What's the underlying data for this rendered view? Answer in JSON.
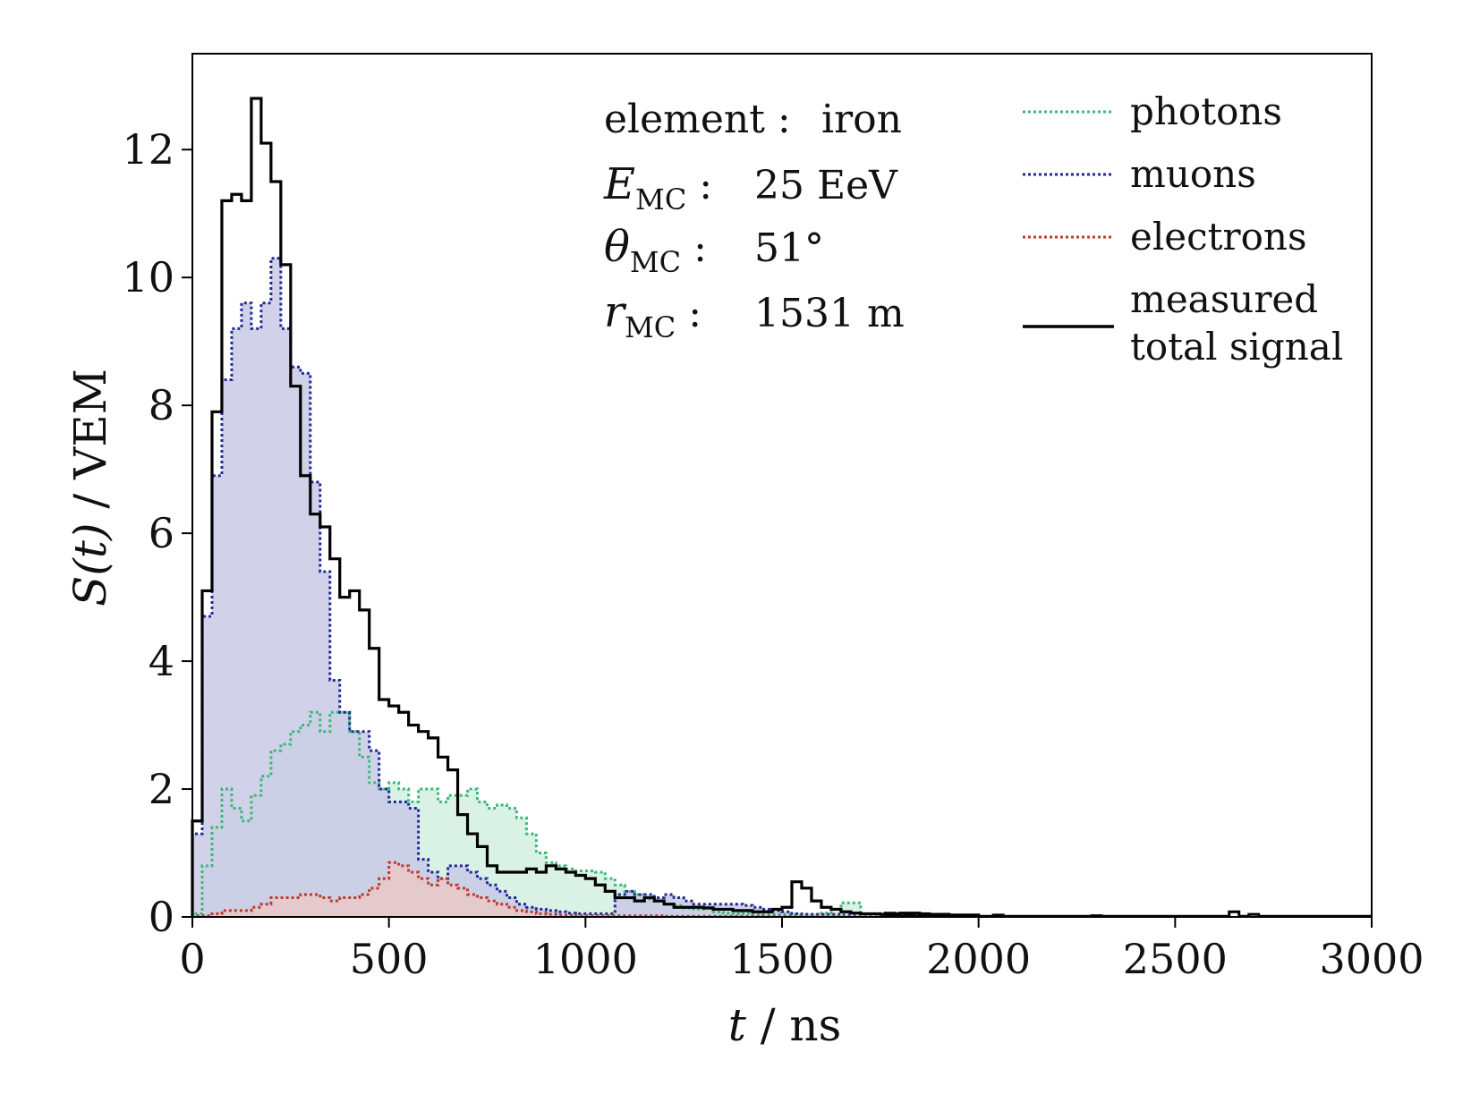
{
  "chart_data": {
    "type": "step-histogram",
    "bin_width": 25,
    "x_start": 0,
    "xlim": [
      0,
      3000
    ],
    "ylim": [
      0,
      13.5
    ],
    "xticks": [
      0,
      500,
      1000,
      1500,
      2000,
      2500,
      3000
    ],
    "yticks": [
      0,
      2,
      4,
      6,
      8,
      10,
      12
    ],
    "xlabel": {
      "var": "t",
      "rest": " / ns"
    },
    "ylabel": {
      "var": "S(t)",
      "rest": " / VEM"
    },
    "info": [
      {
        "sym": "element",
        "sub": "",
        "colon": " :",
        "val": "iron"
      },
      {
        "sym": "E",
        "sub": "MC",
        "colon": " :",
        "val": "25 EeV"
      },
      {
        "sym": "θ",
        "sub": "MC",
        "colon": " :",
        "val": "51°"
      },
      {
        "sym": "r",
        "sub": "MC",
        "colon": " :",
        "val": "1531 m"
      }
    ],
    "series": [
      {
        "name": "photons",
        "color": "#3cb878",
        "fill": "#d3efe0",
        "style": "dotted",
        "values": [
          0.05,
          0.8,
          1.4,
          2.0,
          1.7,
          1.5,
          1.9,
          2.2,
          2.6,
          2.7,
          2.9,
          3.0,
          3.2,
          2.9,
          3.2,
          3.2,
          2.9,
          2.5,
          2.1,
          2.0,
          2.1,
          2.0,
          1.8,
          2.0,
          2.0,
          1.8,
          1.9,
          1.9,
          2.0,
          1.8,
          1.7,
          1.75,
          1.7,
          1.55,
          1.3,
          1.0,
          0.85,
          0.8,
          0.75,
          0.72,
          0.72,
          0.7,
          0.6,
          0.5,
          0.4,
          0.35,
          0.28,
          0.25,
          0.2,
          0.18,
          0.14,
          0.12,
          0.15,
          0.08,
          0.06,
          0.05,
          0.06,
          0.05,
          0.04,
          0.04,
          0.04,
          0.04,
          0.04,
          0.04,
          0.06,
          0.12,
          0.22,
          0.22,
          0.04,
          0.05,
          0.05,
          0.04,
          0.04,
          0.03,
          0.03,
          0.02,
          0.02,
          0.02,
          0.02,
          0.02
        ]
      },
      {
        "name": "muons",
        "color": "#1f2a96",
        "fill": "#c9cae6",
        "style": "dotted",
        "values": [
          1.3,
          4.7,
          6.9,
          8.4,
          9.2,
          9.6,
          9.2,
          9.6,
          10.3,
          9.2,
          8.6,
          8.5,
          6.8,
          5.4,
          3.7,
          3.2,
          2.9,
          2.9,
          2.6,
          2.0,
          1.8,
          1.8,
          1.7,
          0.9,
          0.7,
          0.6,
          0.8,
          0.8,
          0.7,
          0.6,
          0.5,
          0.4,
          0.3,
          0.2,
          0.15,
          0.12,
          0.1,
          0.08,
          0.06,
          0.05,
          0.05,
          0.05,
          0.05,
          0.35,
          0.4,
          0.35,
          0.35,
          0.3,
          0.35,
          0.3,
          0.25,
          0.2,
          0.2,
          0.2,
          0.2,
          0.2,
          0.18,
          0.15,
          0.12,
          0.1,
          0.08,
          0.05,
          0.04,
          0.04,
          0.04,
          0.04,
          0.03,
          0.03,
          0.03,
          0.03,
          0.03,
          0.02,
          0.02,
          0.02,
          0.02,
          0.02,
          0.02,
          0.02,
          0.02,
          0.02
        ]
      },
      {
        "name": "electrons",
        "color": "#c0392b",
        "fill": "#e8c8c8",
        "style": "dotted",
        "values": [
          0.02,
          0.02,
          0.05,
          0.1,
          0.1,
          0.1,
          0.15,
          0.2,
          0.3,
          0.3,
          0.3,
          0.35,
          0.35,
          0.3,
          0.25,
          0.3,
          0.3,
          0.35,
          0.45,
          0.6,
          0.85,
          0.8,
          0.7,
          0.6,
          0.5,
          0.6,
          0.5,
          0.45,
          0.35,
          0.3,
          0.25,
          0.2,
          0.15,
          0.1,
          0.08,
          0.05,
          0.04,
          0.03,
          0.03,
          0.02,
          0.02,
          0.02,
          0.02,
          0.02,
          0.02,
          0.02,
          0.02,
          0.02,
          0.01,
          0.01,
          0.01,
          0.01,
          0.01,
          0.01,
          0.01,
          0.01,
          0.01,
          0.01,
          0.01,
          0.01,
          0.01,
          0.01,
          0.01,
          0.01,
          0.01,
          0.01,
          0.01,
          0.01,
          0.01,
          0.01,
          0.01,
          0.01,
          0.01,
          0.01,
          0.01,
          0.01,
          0.01,
          0.01,
          0.01,
          0.01
        ]
      },
      {
        "name": "measured total signal",
        "color": "#000000",
        "fill": "none",
        "style": "solid",
        "values": [
          1.5,
          5.1,
          7.9,
          11.2,
          11.3,
          11.2,
          12.8,
          12.1,
          11.5,
          10.2,
          8.3,
          6.9,
          6.3,
          6.1,
          5.6,
          5.0,
          5.1,
          4.8,
          4.2,
          3.4,
          3.3,
          3.2,
          3.0,
          2.9,
          2.8,
          2.5,
          2.3,
          1.6,
          1.3,
          1.1,
          0.8,
          0.7,
          0.7,
          0.7,
          0.75,
          0.7,
          0.8,
          0.75,
          0.7,
          0.65,
          0.6,
          0.5,
          0.4,
          0.3,
          0.3,
          0.25,
          0.3,
          0.25,
          0.2,
          0.15,
          0.15,
          0.15,
          0.14,
          0.12,
          0.12,
          0.1,
          0.1,
          0.08,
          0.08,
          0.12,
          0.15,
          0.55,
          0.45,
          0.25,
          0.15,
          0.12,
          0.08,
          0.06,
          0.05,
          0.05,
          0.04,
          0.05,
          0.06,
          0.06,
          0.05,
          0.04,
          0.04,
          0.03,
          0.03,
          0.03
        ]
      }
    ],
    "tail": [
      {
        "x": 1775,
        "y": 0.06
      },
      {
        "x": 1825,
        "y": 0.05
      },
      {
        "x": 2050,
        "y": 0.03
      },
      {
        "x": 2300,
        "y": 0.02
      },
      {
        "x": 2650,
        "y": 0.08
      },
      {
        "x": 2700,
        "y": 0.04
      }
    ],
    "legend": [
      {
        "label": "photons",
        "color": "#3cb878",
        "style": "dotted"
      },
      {
        "label": "muons",
        "color": "#1f2a96",
        "style": "dotted"
      },
      {
        "label": "electrons",
        "color": "#c0392b",
        "style": "dotted"
      },
      {
        "label": "measured",
        "label2": "total signal",
        "color": "#000000",
        "style": "solid"
      }
    ]
  }
}
